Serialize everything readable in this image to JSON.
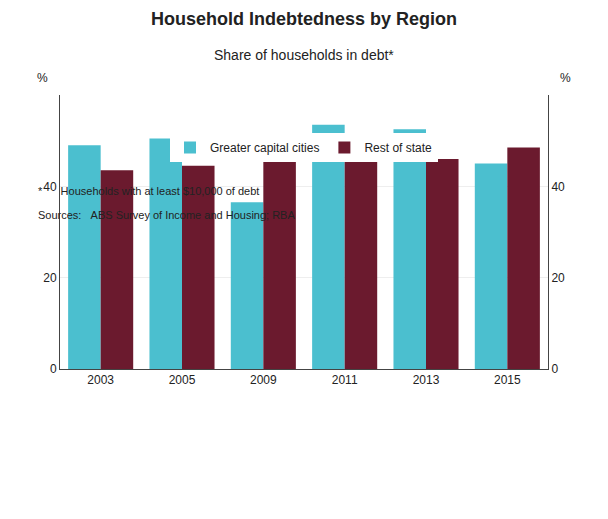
{
  "chart_data": {
    "type": "bar",
    "title": "Household Indebtedness by Region",
    "subtitle": "Share of households in debt*",
    "categories": [
      "2003",
      "2005",
      "2009",
      "2011",
      "2013",
      "2015"
    ],
    "series": [
      {
        "name": "Greater capital cities",
        "color": "#4BBFCF",
        "values": [
          49.0,
          50.5,
          36.5,
          53.5,
          52.5,
          45.0
        ]
      },
      {
        "name": "Rest of state",
        "color": "#6B1A2E",
        "values": [
          43.5,
          44.5,
          47.5,
          47.5,
          46.0,
          48.5
        ]
      }
    ],
    "ylabel": "%",
    "y2label": "%",
    "ylim": [
      0,
      60
    ],
    "yticks": [
      0,
      20,
      40
    ],
    "y2lim": [
      0,
      60
    ],
    "y2ticks": [
      0,
      20,
      40
    ],
    "grid": true,
    "legend": "bottom",
    "footnotes": [
      "*      Households with at least $10,000 of debt",
      "Sources:   ABS Survey of Income and Housing; RBA"
    ]
  }
}
